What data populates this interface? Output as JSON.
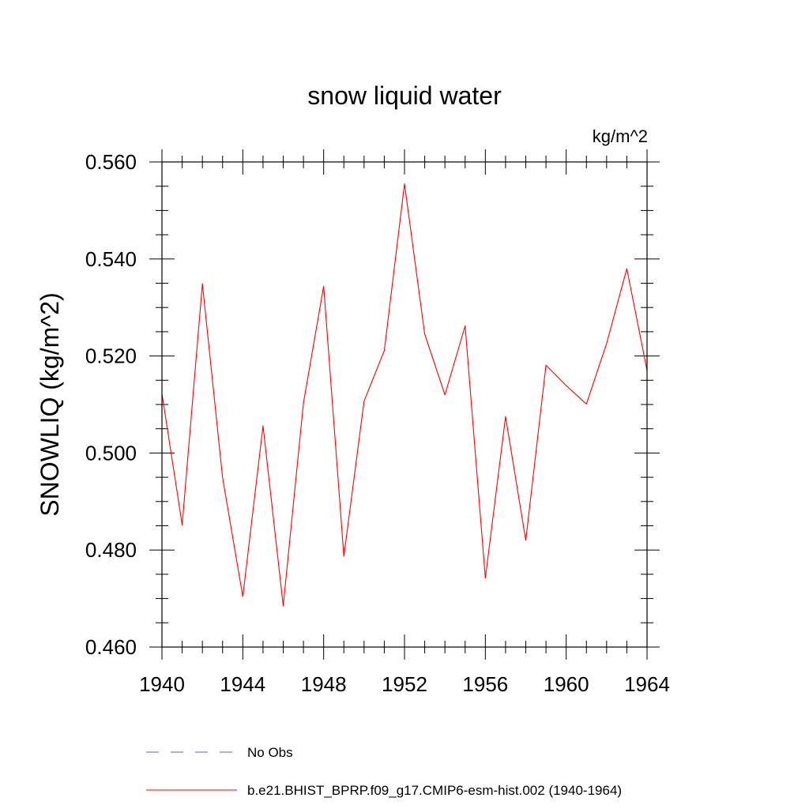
{
  "chart_data": {
    "type": "line",
    "title": "snow liquid water",
    "units_label": "kg/m^2",
    "ylabel": "SNOWLIQ  (kg/m^2)",
    "xlabel": "",
    "xlim": [
      1940,
      1964
    ],
    "ylim": [
      0.46,
      0.56
    ],
    "x_ticks": [
      1940,
      1944,
      1948,
      1952,
      1956,
      1960,
      1964
    ],
    "x_tick_labels": [
      "1940",
      "1944",
      "1948",
      "1952",
      "1956",
      "1960",
      "1964"
    ],
    "y_ticks": [
      0.46,
      0.48,
      0.5,
      0.52,
      0.54,
      0.56
    ],
    "y_tick_labels": [
      "0.460",
      "0.480",
      "0.500",
      "0.520",
      "0.540",
      "0.560"
    ],
    "x_minor_step": 1,
    "y_minor_step": 0.005,
    "grid": false,
    "legend_position": "bottom",
    "series": [
      {
        "name": "b.e21.BHIST_BPRP.f09_g17.CMIP6-esm-hist.002 (1940-1964)",
        "color": "#ff0000",
        "style": "solid",
        "x": [
          1940,
          1941,
          1942,
          1943,
          1944,
          1945,
          1946,
          1947,
          1948,
          1949,
          1950,
          1951,
          1952,
          1953,
          1954,
          1955,
          1956,
          1957,
          1958,
          1959,
          1960,
          1961,
          1962,
          1963,
          1964
        ],
        "values": [
          0.5122,
          0.4852,
          0.5349,
          0.4949,
          0.4704,
          0.5056,
          0.4685,
          0.5103,
          0.5344,
          0.4787,
          0.5107,
          0.5211,
          0.5555,
          0.5245,
          0.512,
          0.5262,
          0.4742,
          0.5075,
          0.482,
          0.5181,
          0.5139,
          0.5101,
          0.5226,
          0.538,
          0.517
        ]
      }
    ],
    "legend": [
      {
        "name": "No Obs",
        "color": "#6a5acd",
        "style": "dashed"
      },
      {
        "name": "b.e21.BHIST_BPRP.f09_g17.CMIP6-esm-hist.002 (1940-1964)",
        "color": "#ff0000",
        "style": "solid"
      }
    ]
  }
}
